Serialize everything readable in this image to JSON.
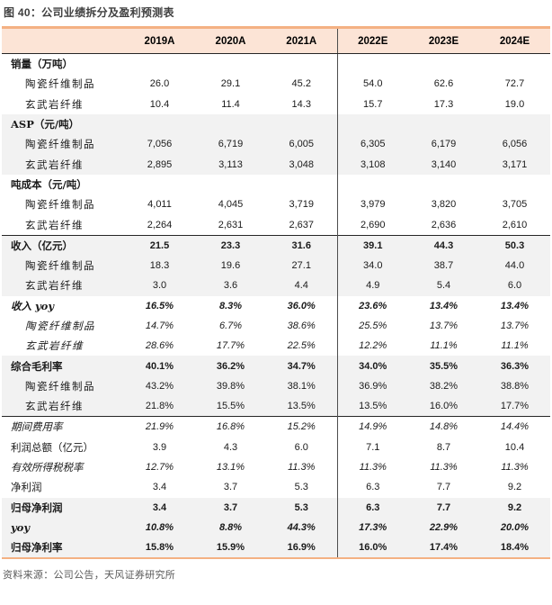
{
  "title": "图 40：公司业绩拆分及盈利预测表",
  "source": "资料来源：公司公告，天风证券研究所",
  "colors": {
    "header_bg": "#fce4d6",
    "accent_rule": "#f4b183",
    "stripe_bg": "#f2f2f2",
    "section_rule": "#262626",
    "divider": "#4d4d4d",
    "title_text": "#3f3f3f",
    "source_text": "#595959"
  },
  "chart_data": {
    "type": "table",
    "title": "图 40：公司业绩拆分及盈利预测表",
    "columns": [
      "",
      "2019A",
      "2020A",
      "2021A",
      "2022E",
      "2023E",
      "2024E"
    ],
    "rows": [
      {
        "label": "销量（万吨）",
        "values": [
          "",
          "",
          "",
          "",
          "",
          ""
        ],
        "bold": true,
        "italic": false,
        "indent": false,
        "shaded": false,
        "top_border": false
      },
      {
        "label": "陶瓷纤维制品",
        "values": [
          "26.0",
          "29.1",
          "45.2",
          "54.0",
          "62.6",
          "72.7"
        ],
        "bold": false,
        "italic": false,
        "indent": true,
        "shaded": false,
        "top_border": false
      },
      {
        "label": "玄武岩纤维",
        "values": [
          "10.4",
          "11.4",
          "14.3",
          "15.7",
          "17.3",
          "19.0"
        ],
        "bold": false,
        "italic": false,
        "indent": true,
        "shaded": false,
        "top_border": false
      },
      {
        "label": "ASP（元/吨）",
        "values": [
          "",
          "",
          "",
          "",
          "",
          ""
        ],
        "bold": true,
        "italic": false,
        "indent": false,
        "shaded": true,
        "top_border": false
      },
      {
        "label": "陶瓷纤维制品",
        "values": [
          "7,056",
          "6,719",
          "6,005",
          "6,305",
          "6,179",
          "6,056"
        ],
        "bold": false,
        "italic": false,
        "indent": true,
        "shaded": true,
        "top_border": false
      },
      {
        "label": "玄武岩纤维",
        "values": [
          "2,895",
          "3,113",
          "3,048",
          "3,108",
          "3,140",
          "3,171"
        ],
        "bold": false,
        "italic": false,
        "indent": true,
        "shaded": true,
        "top_border": false
      },
      {
        "label": "吨成本（元/吨）",
        "values": [
          "",
          "",
          "",
          "",
          "",
          ""
        ],
        "bold": true,
        "italic": false,
        "indent": false,
        "shaded": false,
        "top_border": false
      },
      {
        "label": "陶瓷纤维制品",
        "values": [
          "4,011",
          "4,045",
          "3,719",
          "3,979",
          "3,820",
          "3,705"
        ],
        "bold": false,
        "italic": false,
        "indent": true,
        "shaded": false,
        "top_border": false
      },
      {
        "label": "玄武岩纤维",
        "values": [
          "2,264",
          "2,631",
          "2,637",
          "2,690",
          "2,636",
          "2,610"
        ],
        "bold": false,
        "italic": false,
        "indent": true,
        "shaded": false,
        "top_border": false
      },
      {
        "label": "收入（亿元）",
        "values": [
          "21.5",
          "23.3",
          "31.6",
          "39.1",
          "44.3",
          "50.3"
        ],
        "bold": true,
        "italic": false,
        "indent": false,
        "shaded": true,
        "top_border": true
      },
      {
        "label": "陶瓷纤维制品",
        "values": [
          "18.3",
          "19.6",
          "27.1",
          "34.0",
          "38.7",
          "44.0"
        ],
        "bold": false,
        "italic": false,
        "indent": true,
        "shaded": true,
        "top_border": false
      },
      {
        "label": "玄武岩纤维",
        "values": [
          "3.0",
          "3.6",
          "4.4",
          "4.9",
          "5.4",
          "6.0"
        ],
        "bold": false,
        "italic": false,
        "indent": true,
        "shaded": true,
        "top_border": false
      },
      {
        "label": "收入 yoy",
        "values": [
          "16.5%",
          "8.3%",
          "36.0%",
          "23.6%",
          "13.4%",
          "13.4%"
        ],
        "bold": true,
        "italic": true,
        "indent": false,
        "shaded": false,
        "top_border": false
      },
      {
        "label": "陶瓷纤维制品",
        "values": [
          "14.7%",
          "6.7%",
          "38.6%",
          "25.5%",
          "13.7%",
          "13.7%"
        ],
        "bold": false,
        "italic": true,
        "indent": true,
        "shaded": false,
        "top_border": false
      },
      {
        "label": "玄武岩纤维",
        "values": [
          "28.6%",
          "17.7%",
          "22.5%",
          "12.2%",
          "11.1%",
          "11.1%"
        ],
        "bold": false,
        "italic": true,
        "indent": true,
        "shaded": false,
        "top_border": false
      },
      {
        "label": "综合毛利率",
        "values": [
          "40.1%",
          "36.2%",
          "34.7%",
          "34.0%",
          "35.5%",
          "36.3%"
        ],
        "bold": true,
        "italic": false,
        "indent": false,
        "shaded": true,
        "top_border": false
      },
      {
        "label": "陶瓷纤维制品",
        "values": [
          "43.2%",
          "39.8%",
          "38.1%",
          "36.9%",
          "38.2%",
          "38.8%"
        ],
        "bold": false,
        "italic": false,
        "indent": true,
        "shaded": true,
        "top_border": false
      },
      {
        "label": "玄武岩纤维",
        "values": [
          "21.8%",
          "15.5%",
          "13.5%",
          "13.5%",
          "16.0%",
          "17.7%"
        ],
        "bold": false,
        "italic": false,
        "indent": true,
        "shaded": true,
        "top_border": false
      },
      {
        "label": "期间费用率",
        "values": [
          "21.9%",
          "16.8%",
          "15.2%",
          "14.9%",
          "14.8%",
          "14.4%"
        ],
        "bold": false,
        "italic": true,
        "indent": false,
        "shaded": false,
        "top_border": true
      },
      {
        "label": "利润总额（亿元）",
        "values": [
          "3.9",
          "4.3",
          "6.0",
          "7.1",
          "8.7",
          "10.4"
        ],
        "bold": false,
        "italic": false,
        "indent": false,
        "shaded": false,
        "top_border": false
      },
      {
        "label": "有效所得税税率",
        "values": [
          "12.7%",
          "13.1%",
          "11.3%",
          "11.3%",
          "11.3%",
          "11.3%"
        ],
        "bold": false,
        "italic": true,
        "indent": false,
        "shaded": false,
        "top_border": false
      },
      {
        "label": "净利润",
        "values": [
          "3.4",
          "3.7",
          "5.3",
          "6.3",
          "7.7",
          "9.2"
        ],
        "bold": false,
        "italic": false,
        "indent": false,
        "shaded": false,
        "top_border": false
      },
      {
        "label": "归母净利润",
        "values": [
          "3.4",
          "3.7",
          "5.3",
          "6.3",
          "7.7",
          "9.2"
        ],
        "bold": true,
        "italic": false,
        "indent": false,
        "shaded": true,
        "top_border": false
      },
      {
        "label": "yoy",
        "values": [
          "10.8%",
          "8.8%",
          "44.3%",
          "17.3%",
          "22.9%",
          "20.0%"
        ],
        "bold": true,
        "italic": true,
        "indent": false,
        "shaded": true,
        "top_border": false
      },
      {
        "label": "归母净利率",
        "values": [
          "15.8%",
          "15.9%",
          "16.9%",
          "16.0%",
          "17.4%",
          "18.4%"
        ],
        "bold": true,
        "italic": false,
        "indent": false,
        "shaded": true,
        "top_border": false
      }
    ]
  }
}
